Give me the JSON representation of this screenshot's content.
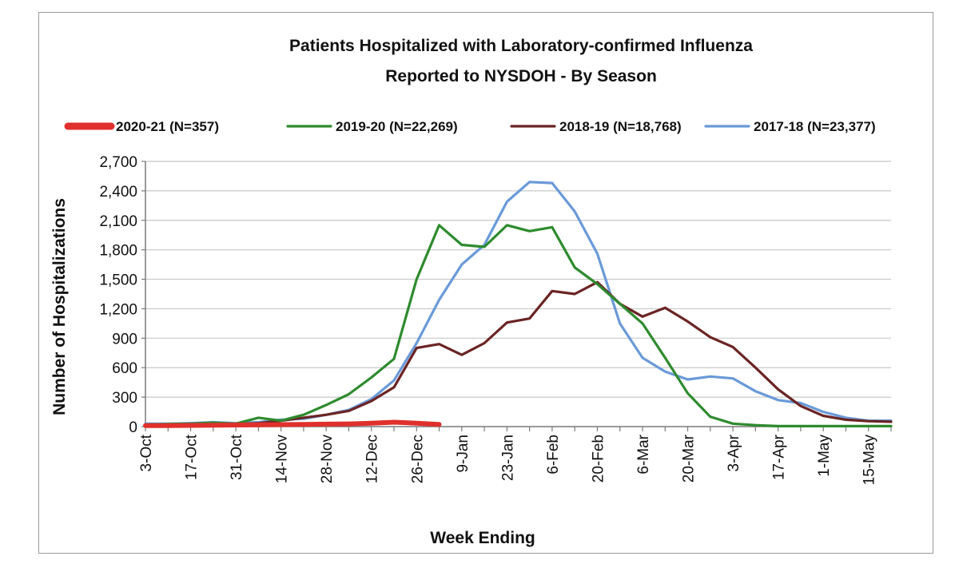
{
  "chart_data": {
    "type": "line",
    "title": "Patients Hospitalized  with Laboratory-confirmed Influenza",
    "subtitle": "Reported to NYSDOH - By Season",
    "xlabel": "Week Ending",
    "ylabel": "Number of Hospitalizations",
    "ylim": [
      0,
      2700
    ],
    "yticks": [
      "0",
      "300",
      "600",
      "900",
      "1,200",
      "1,500",
      "1,800",
      "2,100",
      "2,400",
      "2,700"
    ],
    "x_tick_labels": [
      "3-Oct",
      "17-Oct",
      "31-Oct",
      "14-Nov",
      "28-Nov",
      "12-Dec",
      "26-Dec",
      "9-Jan",
      "23-Jan",
      "6-Feb",
      "20-Feb",
      "6-Mar",
      "20-Mar",
      "3-Apr",
      "17-Apr",
      "1-May",
      "15-May"
    ],
    "weeks": [
      "3-Oct",
      "10-Oct",
      "17-Oct",
      "24-Oct",
      "31-Oct",
      "7-Nov",
      "14-Nov",
      "21-Nov",
      "28-Nov",
      "5-Dec",
      "12-Dec",
      "19-Dec",
      "26-Dec",
      "2-Jan",
      "9-Jan",
      "16-Jan",
      "23-Jan",
      "30-Jan",
      "6-Feb",
      "13-Feb",
      "20-Feb",
      "27-Feb",
      "6-Mar",
      "13-Mar",
      "20-Mar",
      "27-Mar",
      "3-Apr",
      "10-Apr",
      "17-Apr",
      "24-Apr",
      "1-May",
      "8-May",
      "15-May",
      "22-May"
    ],
    "grid": true,
    "legend_position": "top",
    "series": [
      {
        "name": "2020-21 (N=357)",
        "color": "#e0302c",
        "values": [
          10,
          10,
          12,
          14,
          16,
          18,
          20,
          22,
          25,
          28,
          35,
          45,
          35,
          22
        ]
      },
      {
        "name": "2019-20 (N=22,269)",
        "color": "#2e8b2e",
        "values": [
          20,
          25,
          30,
          40,
          30,
          90,
          60,
          120,
          220,
          330,
          500,
          690,
          1500,
          2050,
          1850,
          1830,
          2050,
          1990,
          2030,
          1620,
          1450,
          1250,
          1050,
          700,
          340,
          100,
          30,
          15,
          5,
          5,
          5,
          5,
          5,
          5
        ]
      },
      {
        "name": "2018-19 (N=18,768)",
        "color": "#6b2424",
        "values": [
          20,
          20,
          25,
          30,
          25,
          35,
          60,
          90,
          120,
          160,
          260,
          400,
          800,
          840,
          730,
          850,
          1060,
          1100,
          1380,
          1350,
          1470,
          1250,
          1120,
          1210,
          1070,
          910,
          810,
          600,
          380,
          210,
          110,
          70,
          55,
          50
        ]
      },
      {
        "name": "2017-18 (N=23,377)",
        "color": "#6a9ad8",
        "values": [
          30,
          30,
          35,
          45,
          35,
          45,
          70,
          80,
          120,
          170,
          280,
          470,
          850,
          1290,
          1650,
          1850,
          2290,
          2490,
          2480,
          2190,
          1760,
          1050,
          700,
          560,
          480,
          510,
          490,
          360,
          270,
          240,
          150,
          90,
          60,
          60
        ]
      }
    ]
  }
}
